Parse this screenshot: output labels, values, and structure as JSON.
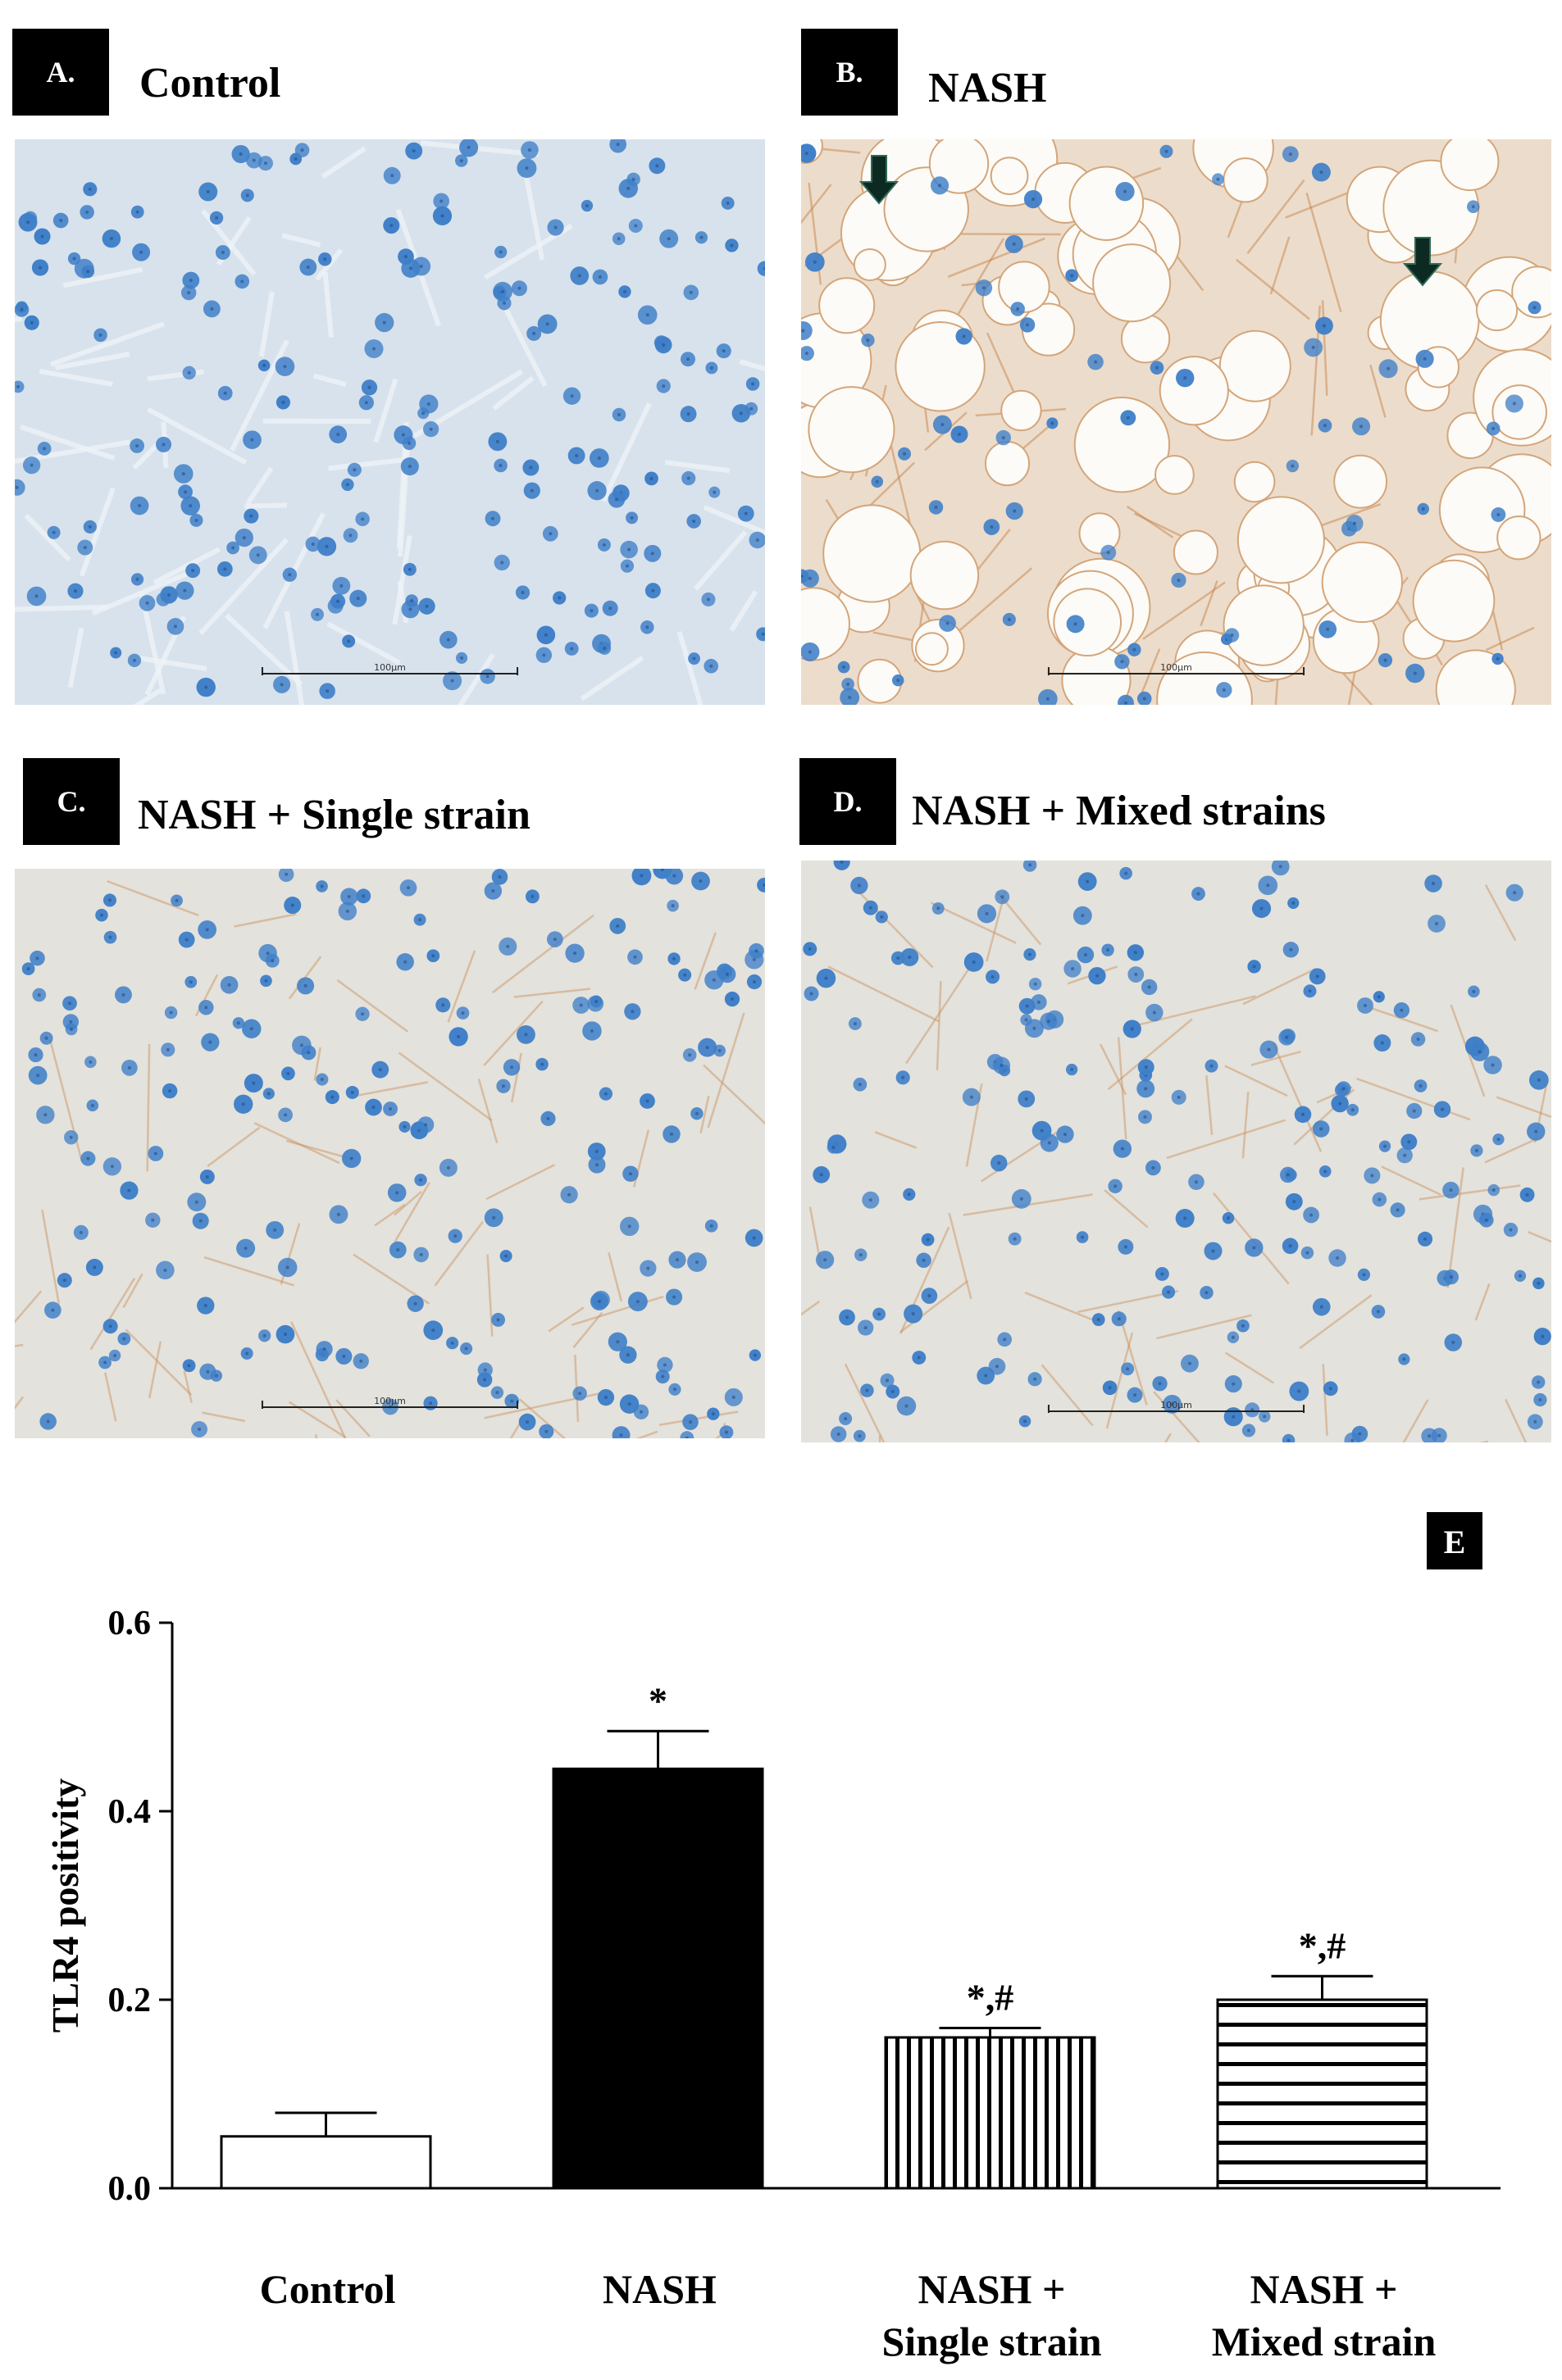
{
  "panels": [
    {
      "letter": "A.",
      "title": "Control",
      "scale_label": "100μm",
      "staining": "blue"
    },
    {
      "letter": "B.",
      "title": "NASH",
      "scale_label": "100μm",
      "staining": "steatosis-brown"
    },
    {
      "letter": "C.",
      "title": "NASH + Single strain",
      "scale_label": "100μm",
      "staining": "light-brown"
    },
    {
      "letter": "D.",
      "title": "NASH + Mixed strains",
      "scale_label": "100μm",
      "staining": "light-brown"
    }
  ],
  "chart_panel_letter": "E",
  "chart_data": {
    "type": "bar",
    "ylabel": "TLR4 positivity",
    "ylim": [
      0,
      0.6
    ],
    "yticks": [
      "0.0",
      "0.2",
      "0.4",
      "0.6"
    ],
    "categories": [
      {
        "lines": [
          "Control"
        ]
      },
      {
        "lines": [
          "NASH"
        ]
      },
      {
        "lines": [
          "NASH +",
          "Single strain"
        ]
      },
      {
        "lines": [
          "NASH +",
          "Mixed strain"
        ]
      }
    ],
    "values": [
      0.055,
      0.445,
      0.16,
      0.2
    ],
    "errors": [
      0.025,
      0.04,
      0.01,
      0.025
    ],
    "fills": [
      "white",
      "black",
      "vertical-stripes",
      "horizontal-stripes"
    ],
    "significance": [
      "",
      "*",
      "*,#",
      "*,#"
    ]
  },
  "colors": {
    "nucleus": "#3f7fc8",
    "tissue_blue": "#d6e1ec",
    "brown_stain": "#b86a2e",
    "fat_vacuole": "#fcfbf7"
  }
}
